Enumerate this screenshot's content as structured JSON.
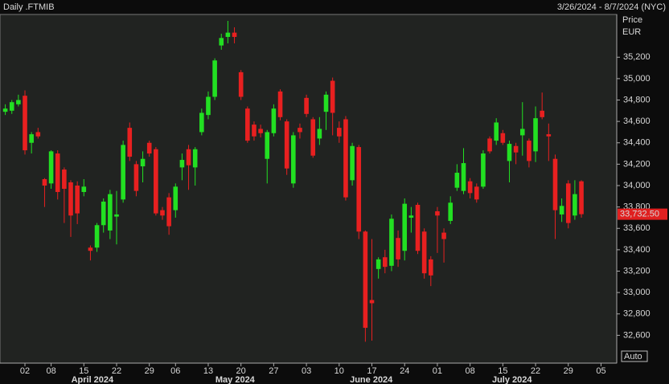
{
  "chart_data": {
    "type": "candlestick",
    "title": "Daily .FTMIB",
    "subtitle": "3/26/2024 - 8/7/2024 (NYC)",
    "y_axis_labels": [
      "Price",
      "EUR"
    ],
    "button": "Auto",
    "up_color": "#22e022",
    "down_color": "#e82020",
    "ylim": [
      32340,
      35600
    ],
    "yticks": [
      {
        "value": 32600,
        "label": "32,600"
      },
      {
        "value": 32800,
        "label": "32,800"
      },
      {
        "value": 33000,
        "label": "33,000"
      },
      {
        "value": 33200,
        "label": "33,200"
      },
      {
        "value": 33400,
        "label": "33,400"
      },
      {
        "value": 33600,
        "label": "33,600"
      },
      {
        "value": 33800,
        "label": "33,800"
      },
      {
        "value": 34000,
        "label": "34,000"
      },
      {
        "value": 34200,
        "label": "34,200"
      },
      {
        "value": 34400,
        "label": "34,400"
      },
      {
        "value": 34600,
        "label": "34,600"
      },
      {
        "value": 34800,
        "label": "34,800"
      },
      {
        "value": 35000,
        "label": "35,000"
      },
      {
        "value": 35200,
        "label": "35,200"
      }
    ],
    "xlim": [
      -0.81,
      93.4
    ],
    "xticks": [
      {
        "value": 3,
        "label": "02"
      },
      {
        "value": 7,
        "label": "08"
      },
      {
        "value": 12,
        "label": "15"
      },
      {
        "value": 17,
        "label": "22"
      },
      {
        "value": 22,
        "label": "29"
      },
      {
        "value": 26,
        "label": "06"
      },
      {
        "value": 31,
        "label": "13"
      },
      {
        "value": 36,
        "label": "20"
      },
      {
        "value": 41,
        "label": "27"
      },
      {
        "value": 46,
        "label": "03"
      },
      {
        "value": 51,
        "label": "10"
      },
      {
        "value": 56,
        "label": "17"
      },
      {
        "value": 61,
        "label": "24"
      },
      {
        "value": 66,
        "label": "01"
      },
      {
        "value": 71,
        "label": "08"
      },
      {
        "value": 76,
        "label": "15"
      },
      {
        "value": 81,
        "label": "22"
      },
      {
        "value": 86,
        "label": "29"
      },
      {
        "value": 91,
        "label": "05"
      }
    ],
    "month_labels": [
      {
        "value": 13.3,
        "label": "April 2024"
      },
      {
        "value": 35.1,
        "label": "May 2024"
      },
      {
        "value": 55.9,
        "label": "June 2024"
      },
      {
        "value": 77.4,
        "label": "July 2024"
      }
    ],
    "last_price": {
      "value": 33732.5,
      "label": "33,732.50"
    },
    "open": [
      34690,
      34700,
      34760,
      34840,
      34400,
      34500,
      34060,
      34020,
      34300,
      34150,
      34030,
      34000,
      33940,
      33420,
      33420,
      33630,
      33580,
      33710,
      33870,
      34540,
      34200,
      34180,
      34400,
      34340,
      33770,
      33890,
      33770,
      34170,
      34340,
      34170,
      34500,
      34660,
      34830,
      35310,
      35390,
      35430,
      35060,
      34720,
      34570,
      34530,
      34250,
      34490,
      34880,
      34600,
      34020,
      34540,
      34820,
      34620,
      34440,
      34690,
      34980,
      34540,
      34620,
      34050,
      34360,
      33570,
      32930,
      33220,
      33330,
      33250,
      33510,
      33390,
      33700,
      33820,
      33570,
      33310,
      33760,
      33560,
      33670,
      33980,
      33950,
      34040,
      33990,
      33990,
      34440,
      34420,
      34490,
      34230,
      34370,
      34470,
      34420,
      34320,
      34700,
      34480,
      34250,
      33730,
      34020,
      33720,
      34040
    ],
    "high": [
      34760,
      34800,
      34850,
      34890,
      34500,
      34540,
      34070,
      34330,
      34330,
      34170,
      34050,
      34040,
      34060,
      33440,
      33650,
      33880,
      33960,
      33950,
      34420,
      34590,
      34230,
      34320,
      34420,
      34360,
      33800,
      33930,
      34020,
      34300,
      34380,
      34360,
      34720,
      34880,
      35190,
      35420,
      35540,
      35480,
      35080,
      34740,
      34600,
      34570,
      34520,
      34760,
      34900,
      34620,
      34500,
      34580,
      34850,
      34640,
      34640,
      34880,
      35010,
      34600,
      34650,
      34400,
      34380,
      33580,
      33500,
      33330,
      33400,
      33730,
      33580,
      33880,
      33800,
      33840,
      33600,
      33340,
      33800,
      33600,
      33900,
      34200,
      34350,
      34070,
      34020,
      34330,
      34460,
      34630,
      34520,
      34420,
      34400,
      34780,
      34440,
      34740,
      34870,
      34580,
      34290,
      33880,
      34050,
      34050,
      34050
    ],
    "low": [
      34660,
      34670,
      34740,
      34290,
      34300,
      34440,
      33800,
      33970,
      33870,
      33650,
      33520,
      33640,
      33900,
      33300,
      33380,
      33560,
      33500,
      33450,
      33840,
      34230,
      33900,
      34030,
      34270,
      33720,
      33680,
      33540,
      33700,
      34050,
      33960,
      34000,
      34470,
      34620,
      34800,
      35270,
      35330,
      35330,
      34800,
      34400,
      34420,
      34450,
      34020,
      34460,
      34610,
      34100,
      33980,
      34440,
      34640,
      34260,
      34380,
      34520,
      34470,
      34400,
      33860,
      34000,
      33500,
      32540,
      32550,
      33130,
      33180,
      33200,
      33240,
      33300,
      33560,
      33360,
      33130,
      33060,
      33370,
      33280,
      33640,
      33950,
      33920,
      33880,
      33840,
      33970,
      34300,
      34380,
      34380,
      34030,
      34200,
      34280,
      34170,
      34220,
      34620,
      34230,
      33500,
      33660,
      33600,
      33680,
      33700
    ],
    "close": [
      34720,
      34780,
      34800,
      34330,
      34480,
      34460,
      34000,
      34320,
      33940,
      33970,
      33720,
      33740,
      33990,
      33390,
      33630,
      33850,
      33920,
      33730,
      34380,
      34270,
      33950,
      34250,
      34300,
      33740,
      33720,
      33620,
      33990,
      34240,
      34190,
      34340,
      34680,
      34830,
      35170,
      35380,
      35430,
      35390,
      34830,
      34420,
      34460,
      34490,
      34500,
      34720,
      34640,
      34160,
      34470,
      34500,
      34670,
      34280,
      34530,
      34850,
      34680,
      34460,
      33890,
      34370,
      33570,
      32670,
      32900,
      33310,
      33240,
      33690,
      33310,
      33830,
      33720,
      33390,
      33180,
      33160,
      33720,
      33500,
      33840,
      34120,
      34210,
      33930,
      33870,
      34300,
      34320,
      34590,
      34400,
      34390,
      34310,
      34530,
      34230,
      34630,
      34640,
      34460,
      33770,
      33810,
      33650,
      33920,
      33732.5
    ]
  }
}
